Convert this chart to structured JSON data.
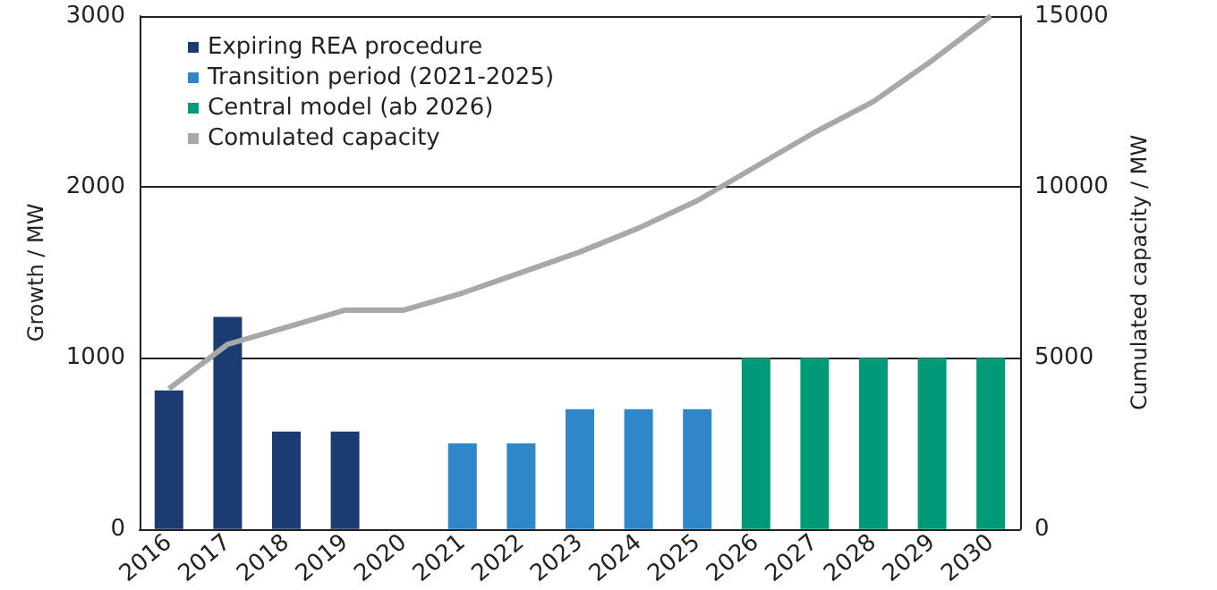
{
  "chart_data": {
    "type": "bar",
    "ylabel": "Growth / MW",
    "y2label": "Cumulated capacity / MW",
    "categories": [
      "2016",
      "2017",
      "2018",
      "2019",
      "2020",
      "2021",
      "2022",
      "2023",
      "2024",
      "2025",
      "2026",
      "2027",
      "2028",
      "2029",
      "2030"
    ],
    "series": [
      {
        "name": "Expiring REA procedure",
        "color": "#1b3c70",
        "values": [
          810,
          1240,
          570,
          570,
          null,
          null,
          null,
          null,
          null,
          null,
          null,
          null,
          null,
          null,
          null
        ]
      },
      {
        "name": "Transition period (2021-2025)",
        "color": "#2f86c8",
        "values": [
          null,
          null,
          null,
          null,
          null,
          500,
          500,
          700,
          700,
          700,
          null,
          null,
          null,
          null,
          null
        ]
      },
      {
        "name": "Central model (ab 2026)",
        "color": "#009a78",
        "values": [
          null,
          null,
          null,
          null,
          null,
          null,
          null,
          null,
          null,
          null,
          1000,
          1000,
          1000,
          1000,
          1000
        ]
      },
      {
        "name": "Comulated capacity",
        "type": "line",
        "axis": "y2",
        "color": "#a8a8a8",
        "marker": "none",
        "values": [
          4100,
          5400,
          5900,
          6400,
          6400,
          6900,
          7500,
          8100,
          8800,
          9600,
          10600,
          11600,
          12500,
          13700,
          15000
        ]
      }
    ],
    "ylim": [
      0,
      3000
    ],
    "yticks": [
      0,
      1000,
      2000,
      3000
    ],
    "y2lim": [
      0,
      15000
    ],
    "y2ticks": [
      0,
      5000,
      10000,
      15000
    ],
    "grid": "y",
    "legend": "top left"
  }
}
